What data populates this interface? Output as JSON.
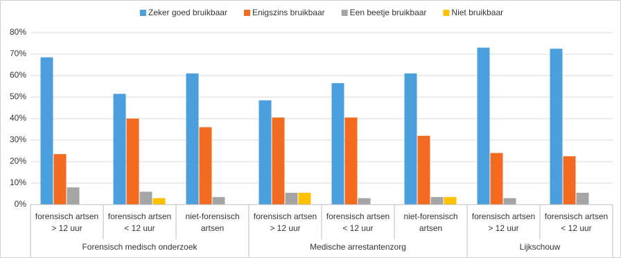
{
  "chart_data": {
    "type": "bar",
    "groups": [
      {
        "label": "Forensisch medisch onderzoek",
        "categories": [
          [
            "forensisch artsen",
            "> 12 uur"
          ],
          [
            "forensisch artsen",
            "< 12 uur"
          ],
          [
            "niet-forensisch",
            "artsen"
          ]
        ]
      },
      {
        "label": "Medische arrestantenzorg",
        "categories": [
          [
            "forensisch artsen",
            "> 12 uur"
          ],
          [
            "forensisch artsen",
            "< 12 uur"
          ],
          [
            "niet-forensisch",
            "artsen"
          ]
        ]
      },
      {
        "label": "Lijkschouw",
        "categories": [
          [
            "forensisch artsen",
            "> 12 uur"
          ],
          [
            "forensisch artsen",
            "< 12 uur"
          ]
        ]
      }
    ],
    "series": [
      {
        "name": "Zeker goed bruikbaar",
        "color": "#4a9fdc",
        "values": [
          68.5,
          51.5,
          61,
          48.5,
          56.5,
          61,
          73,
          72.5
        ]
      },
      {
        "name": "Enigszins bruikbaar",
        "color": "#f26b21",
        "values": [
          23.5,
          40,
          36,
          40.5,
          40.5,
          32,
          24,
          22.5
        ]
      },
      {
        "name": "Een beetje bruikbaar",
        "color": "#a5a5a5",
        "values": [
          8,
          6,
          3.5,
          5.5,
          3,
          3.5,
          3,
          5.5
        ]
      },
      {
        "name": "Niet bruikbaar",
        "color": "#ffc000",
        "values": [
          0,
          3,
          0,
          5.5,
          0,
          3.5,
          0,
          0
        ]
      }
    ],
    "ylim": [
      0,
      80
    ],
    "yticks": [
      {
        "value": 0,
        "label": "0%"
      },
      {
        "value": 10,
        "label": "10%"
      },
      {
        "value": 20,
        "label": "20%"
      },
      {
        "value": 30,
        "label": "30%"
      },
      {
        "value": 40,
        "label": "40%"
      },
      {
        "value": 50,
        "label": "50%"
      },
      {
        "value": 60,
        "label": "60%"
      },
      {
        "value": 70,
        "label": "70%"
      },
      {
        "value": 80,
        "label": "80%"
      }
    ],
    "grid": true,
    "legend": "top"
  }
}
